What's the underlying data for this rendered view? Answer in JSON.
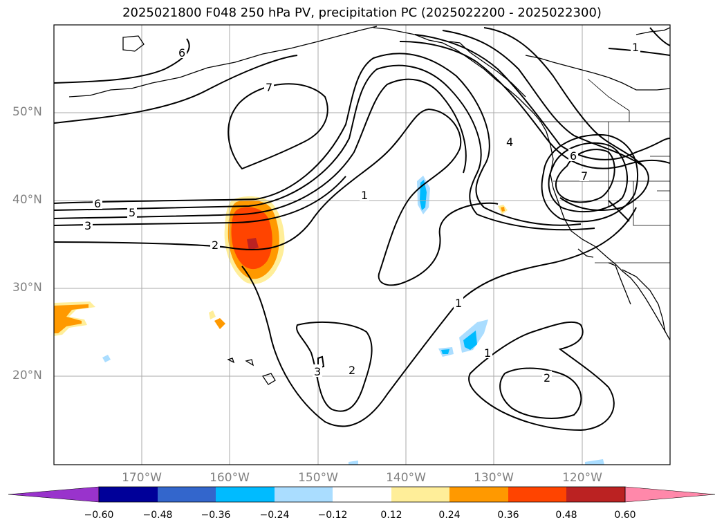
{
  "title": "2025021800 F048 250 hPa PV, precipitation PC (2025022200 - 2025022300)",
  "lat_labels": [
    "50°N",
    "40°N",
    "30°N",
    "20°N"
  ],
  "lon_labels": [
    "170°W",
    "160°W",
    "150°W",
    "140°W",
    "130°W",
    "120°W"
  ],
  "contour_labels": [
    "6",
    "7",
    "6",
    "5",
    "3",
    "2",
    "1",
    "1",
    "1",
    "4",
    "6",
    "7",
    "1",
    "3",
    "2",
    "2"
  ],
  "colorbar": {
    "ticks": [
      "−0.60",
      "−0.48",
      "−0.36",
      "−0.24",
      "−0.12",
      "0.12",
      "0.24",
      "0.36",
      "0.48",
      "0.60"
    ],
    "colors": [
      "#9933cc",
      "#000099",
      "#3366cc",
      "#00bbff",
      "#aaddff",
      "#ffffff",
      "#ffee99",
      "#ff9900",
      "#ff4400",
      "#bb2222",
      "#ff88aa"
    ]
  }
}
